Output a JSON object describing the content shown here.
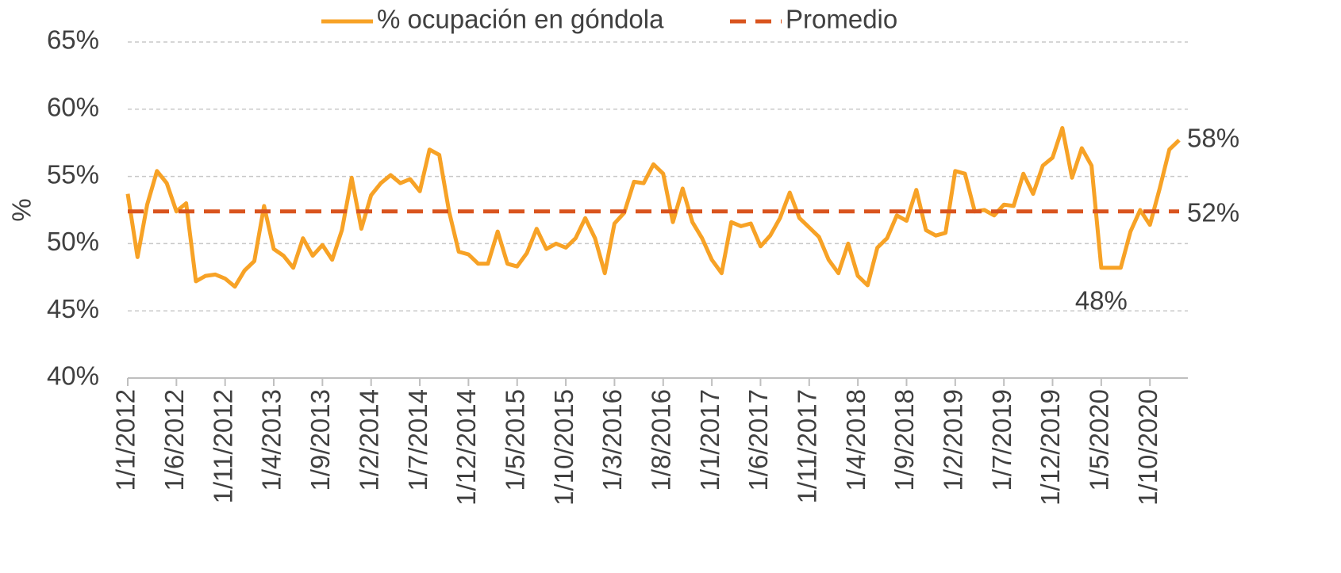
{
  "chart_data": {
    "type": "line",
    "ylabel": "%",
    "categories": [
      "1/1/2012",
      null,
      null,
      null,
      null,
      "1/6/2012",
      null,
      null,
      null,
      null,
      "1/11/2012",
      null,
      null,
      null,
      null,
      "1/4/2013",
      null,
      null,
      null,
      null,
      "1/9/2013",
      null,
      null,
      null,
      null,
      "1/2/2014",
      null,
      null,
      null,
      null,
      "1/7/2014",
      null,
      null,
      null,
      null,
      "1/12/2014",
      null,
      null,
      null,
      null,
      "1/5/2015",
      null,
      null,
      null,
      null,
      "1/10/2015",
      null,
      null,
      null,
      null,
      "1/3/2016",
      null,
      null,
      null,
      null,
      "1/8/2016",
      null,
      null,
      null,
      null,
      "1/1/2017",
      null,
      null,
      null,
      null,
      "1/6/2017",
      null,
      null,
      null,
      null,
      "1/11/2017",
      null,
      null,
      null,
      null,
      "1/4/2018",
      null,
      null,
      null,
      null,
      "1/9/2018",
      null,
      null,
      null,
      null,
      "1/2/2019",
      null,
      null,
      null,
      null,
      "1/7/2019",
      null,
      null,
      null,
      null,
      "1/12/2019",
      null,
      null,
      null,
      null,
      "1/5/2020",
      null,
      null,
      null,
      null,
      "1/10/2020",
      null,
      null,
      null
    ],
    "series": [
      {
        "name": "% ocupación en góndola",
        "color": "#f7a226",
        "dashed": false,
        "values": [
          53.7,
          49.0,
          52.9,
          55.4,
          54.5,
          52.4,
          53.0,
          47.2,
          47.6,
          47.7,
          47.4,
          46.8,
          48.0,
          48.7,
          52.8,
          49.6,
          49.1,
          48.2,
          50.4,
          49.1,
          49.9,
          48.8,
          51.0,
          54.9,
          51.1,
          53.6,
          54.5,
          55.1,
          54.5,
          54.8,
          53.9,
          57.0,
          56.6,
          52.4,
          49.4,
          49.2,
          48.5,
          48.5,
          50.9,
          48.5,
          48.3,
          49.3,
          51.1,
          49.6,
          50.0,
          49.7,
          50.4,
          51.9,
          50.4,
          47.8,
          51.5,
          52.3,
          54.6,
          54.5,
          55.9,
          55.2,
          51.6,
          54.1,
          51.6,
          50.4,
          48.8,
          47.8,
          51.6,
          51.3,
          51.5,
          49.8,
          50.6,
          51.9,
          53.8,
          51.9,
          51.2,
          50.5,
          48.8,
          47.8,
          50.0,
          47.6,
          46.9,
          49.7,
          50.4,
          52.1,
          51.7,
          54.0,
          51.0,
          50.6,
          50.8,
          55.4,
          55.2,
          52.4,
          52.5,
          52.1,
          52.9,
          52.8,
          55.2,
          53.7,
          55.8,
          56.4,
          58.6,
          54.9,
          57.1,
          55.8,
          48.2,
          48.2,
          48.2,
          50.9,
          52.5,
          51.4,
          54.1,
          57.0,
          57.7
        ],
        "value_labels": [
          null,
          null,
          null,
          null,
          null,
          null,
          null,
          null,
          null,
          null,
          null,
          null,
          null,
          null,
          null,
          null,
          null,
          null,
          null,
          null,
          null,
          null,
          null,
          null,
          null,
          null,
          null,
          null,
          null,
          null,
          null,
          null,
          null,
          null,
          null,
          null,
          null,
          null,
          null,
          null,
          null,
          null,
          null,
          null,
          null,
          null,
          null,
          null,
          null,
          null,
          null,
          null,
          null,
          null,
          null,
          null,
          null,
          null,
          null,
          null,
          null,
          null,
          null,
          null,
          null,
          null,
          null,
          null,
          null,
          null,
          null,
          null,
          null,
          null,
          null,
          null,
          null,
          null,
          null,
          null,
          null,
          null,
          null,
          null,
          null,
          null,
          null,
          null,
          null,
          null,
          null,
          null,
          null,
          null,
          null,
          null,
          null,
          null,
          null,
          null,
          "48%",
          null,
          null,
          null,
          null,
          null,
          null,
          null,
          "58%"
        ]
      },
      {
        "name": "Promedio",
        "color": "#d9541e",
        "dashed": true,
        "values": [
          52.4,
          52.4,
          52.4,
          52.4,
          52.4,
          52.4,
          52.4,
          52.4,
          52.4,
          52.4,
          52.4,
          52.4,
          52.4,
          52.4,
          52.4,
          52.4,
          52.4,
          52.4,
          52.4,
          52.4,
          52.4,
          52.4,
          52.4,
          52.4,
          52.4,
          52.4,
          52.4,
          52.4,
          52.4,
          52.4,
          52.4,
          52.4,
          52.4,
          52.4,
          52.4,
          52.4,
          52.4,
          52.4,
          52.4,
          52.4,
          52.4,
          52.4,
          52.4,
          52.4,
          52.4,
          52.4,
          52.4,
          52.4,
          52.4,
          52.4,
          52.4,
          52.4,
          52.4,
          52.4,
          52.4,
          52.4,
          52.4,
          52.4,
          52.4,
          52.4,
          52.4,
          52.4,
          52.4,
          52.4,
          52.4,
          52.4,
          52.4,
          52.4,
          52.4,
          52.4,
          52.4,
          52.4,
          52.4,
          52.4,
          52.4,
          52.4,
          52.4,
          52.4,
          52.4,
          52.4,
          52.4,
          52.4,
          52.4,
          52.4,
          52.4,
          52.4,
          52.4,
          52.4,
          52.4,
          52.4,
          52.4,
          52.4,
          52.4,
          52.4,
          52.4,
          52.4,
          52.4,
          52.4,
          52.4,
          52.4,
          52.4,
          52.4,
          52.4,
          52.4,
          52.4,
          52.4,
          52.4,
          52.4,
          52.4
        ],
        "value_labels": [
          null,
          null,
          null,
          null,
          null,
          null,
          null,
          null,
          null,
          null,
          null,
          null,
          null,
          null,
          null,
          null,
          null,
          null,
          null,
          null,
          null,
          null,
          null,
          null,
          null,
          null,
          null,
          null,
          null,
          null,
          null,
          null,
          null,
          null,
          null,
          null,
          null,
          null,
          null,
          null,
          null,
          null,
          null,
          null,
          null,
          null,
          null,
          null,
          null,
          null,
          null,
          null,
          null,
          null,
          null,
          null,
          null,
          null,
          null,
          null,
          null,
          null,
          null,
          null,
          null,
          null,
          null,
          null,
          null,
          null,
          null,
          null,
          null,
          null,
          null,
          null,
          null,
          null,
          null,
          null,
          null,
          null,
          null,
          null,
          null,
          null,
          null,
          null,
          null,
          null,
          null,
          null,
          null,
          null,
          null,
          null,
          null,
          null,
          null,
          null,
          null,
          null,
          null,
          null,
          null,
          null,
          null,
          null,
          "52%"
        ]
      }
    ],
    "ylim": [
      40,
      65
    ],
    "yticks": [
      {
        "value": 40,
        "label": "40%"
      },
      {
        "value": 45,
        "label": "45%"
      },
      {
        "value": 50,
        "label": "50%"
      },
      {
        "value": 55,
        "label": "55%"
      },
      {
        "value": 60,
        "label": "60%"
      },
      {
        "value": 65,
        "label": "65%"
      }
    ],
    "grid": true,
    "legend": "top"
  }
}
